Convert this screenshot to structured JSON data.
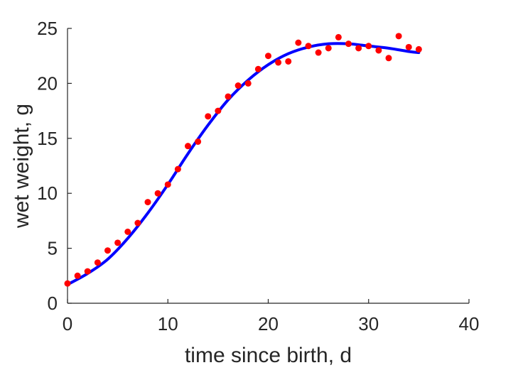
{
  "chart_data": {
    "type": "scatter",
    "xlabel": "time since birth, d",
    "ylabel": "wet weight, g",
    "xlim": [
      0,
      40
    ],
    "ylim": [
      0,
      25
    ],
    "xticks": [
      0,
      10,
      20,
      30,
      40
    ],
    "yticks": [
      0,
      5,
      10,
      15,
      20,
      25
    ],
    "grid": false,
    "series": [
      {
        "kind": "points",
        "color": "#ff0000",
        "x": [
          0,
          1,
          2,
          3,
          4,
          5,
          6,
          7,
          8,
          9,
          10,
          11,
          12,
          13,
          14,
          15,
          16,
          17,
          18,
          19,
          20,
          21,
          22,
          23,
          24,
          25,
          26,
          27,
          28,
          29,
          30,
          31,
          32,
          33,
          34,
          35
        ],
        "y": [
          1.8,
          2.5,
          2.9,
          3.7,
          4.8,
          5.5,
          6.5,
          7.3,
          9.2,
          10.0,
          10.8,
          12.2,
          14.3,
          14.7,
          17.0,
          17.5,
          18.8,
          19.8,
          20.0,
          21.3,
          22.5,
          21.9,
          22.0,
          23.7,
          23.4,
          22.8,
          23.2,
          24.2,
          23.6,
          23.2,
          23.4,
          23.0,
          22.3,
          24.3,
          23.3,
          23.1
        ]
      },
      {
        "kind": "line",
        "color": "#0000ff",
        "x": [
          0,
          2,
          4,
          6,
          8,
          10,
          12,
          14,
          16,
          18,
          20,
          22,
          24,
          26,
          28,
          30,
          32,
          34,
          35
        ],
        "y": [
          1.7,
          2.7,
          4.0,
          5.9,
          8.2,
          10.8,
          13.6,
          16.2,
          18.5,
          20.3,
          21.7,
          22.7,
          23.3,
          23.6,
          23.6,
          23.4,
          23.2,
          22.9,
          22.8
        ]
      }
    ]
  }
}
